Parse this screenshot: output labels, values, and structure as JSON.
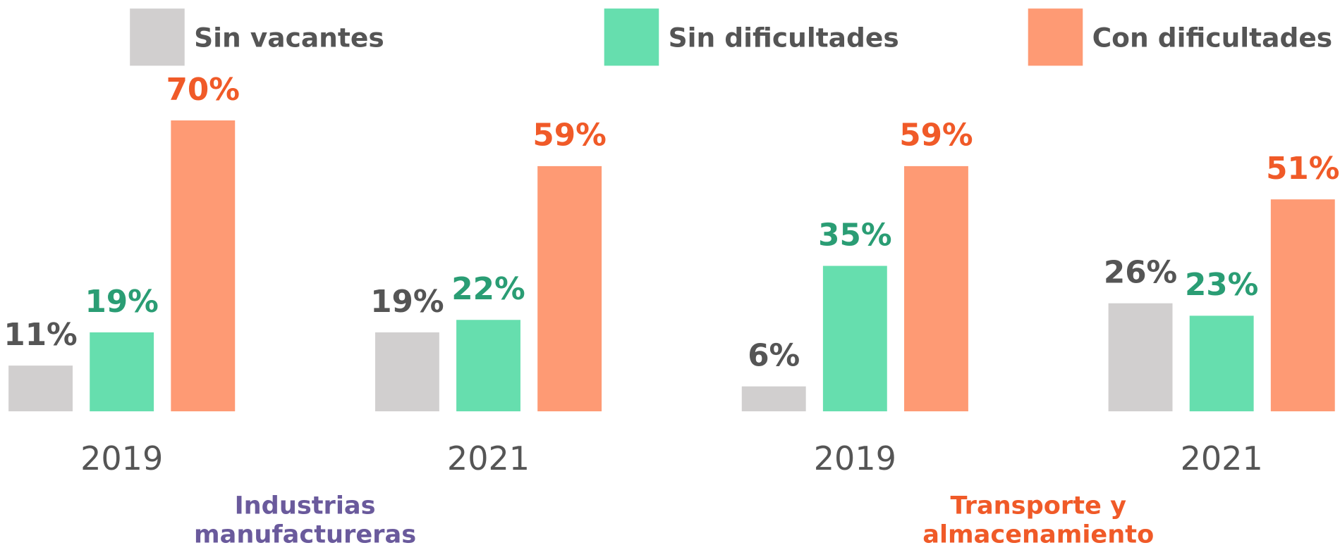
{
  "chart_data": {
    "type": "bar",
    "categories": [
      "2019",
      "2021",
      "2019",
      "2021"
    ],
    "groups": [
      {
        "name": "Industrias manufactureras",
        "color": "#6a5a9c"
      },
      {
        "name": "Transporte y almacenamiento",
        "color": "#f05a28"
      }
    ],
    "series": [
      {
        "name": "Sin vacantes",
        "color": "#d1cfcf",
        "label_color": "#555555",
        "values": [
          11,
          19,
          6,
          26
        ],
        "value_labels": [
          "11%",
          "19%",
          "6%",
          "26%"
        ]
      },
      {
        "name": "Sin dificultades",
        "color": "#66deae",
        "label_color": "#2a9d74",
        "values": [
          19,
          22,
          35,
          23
        ],
        "value_labels": [
          "19%",
          "22%",
          "35%",
          "23%"
        ]
      },
      {
        "name": "Con dificultades",
        "color": "#fe9a74",
        "label_color": "#f05a28",
        "values": [
          70,
          59,
          59,
          51
        ],
        "value_labels": [
          "70%",
          "59%",
          "59%",
          "51%"
        ]
      }
    ]
  }
}
